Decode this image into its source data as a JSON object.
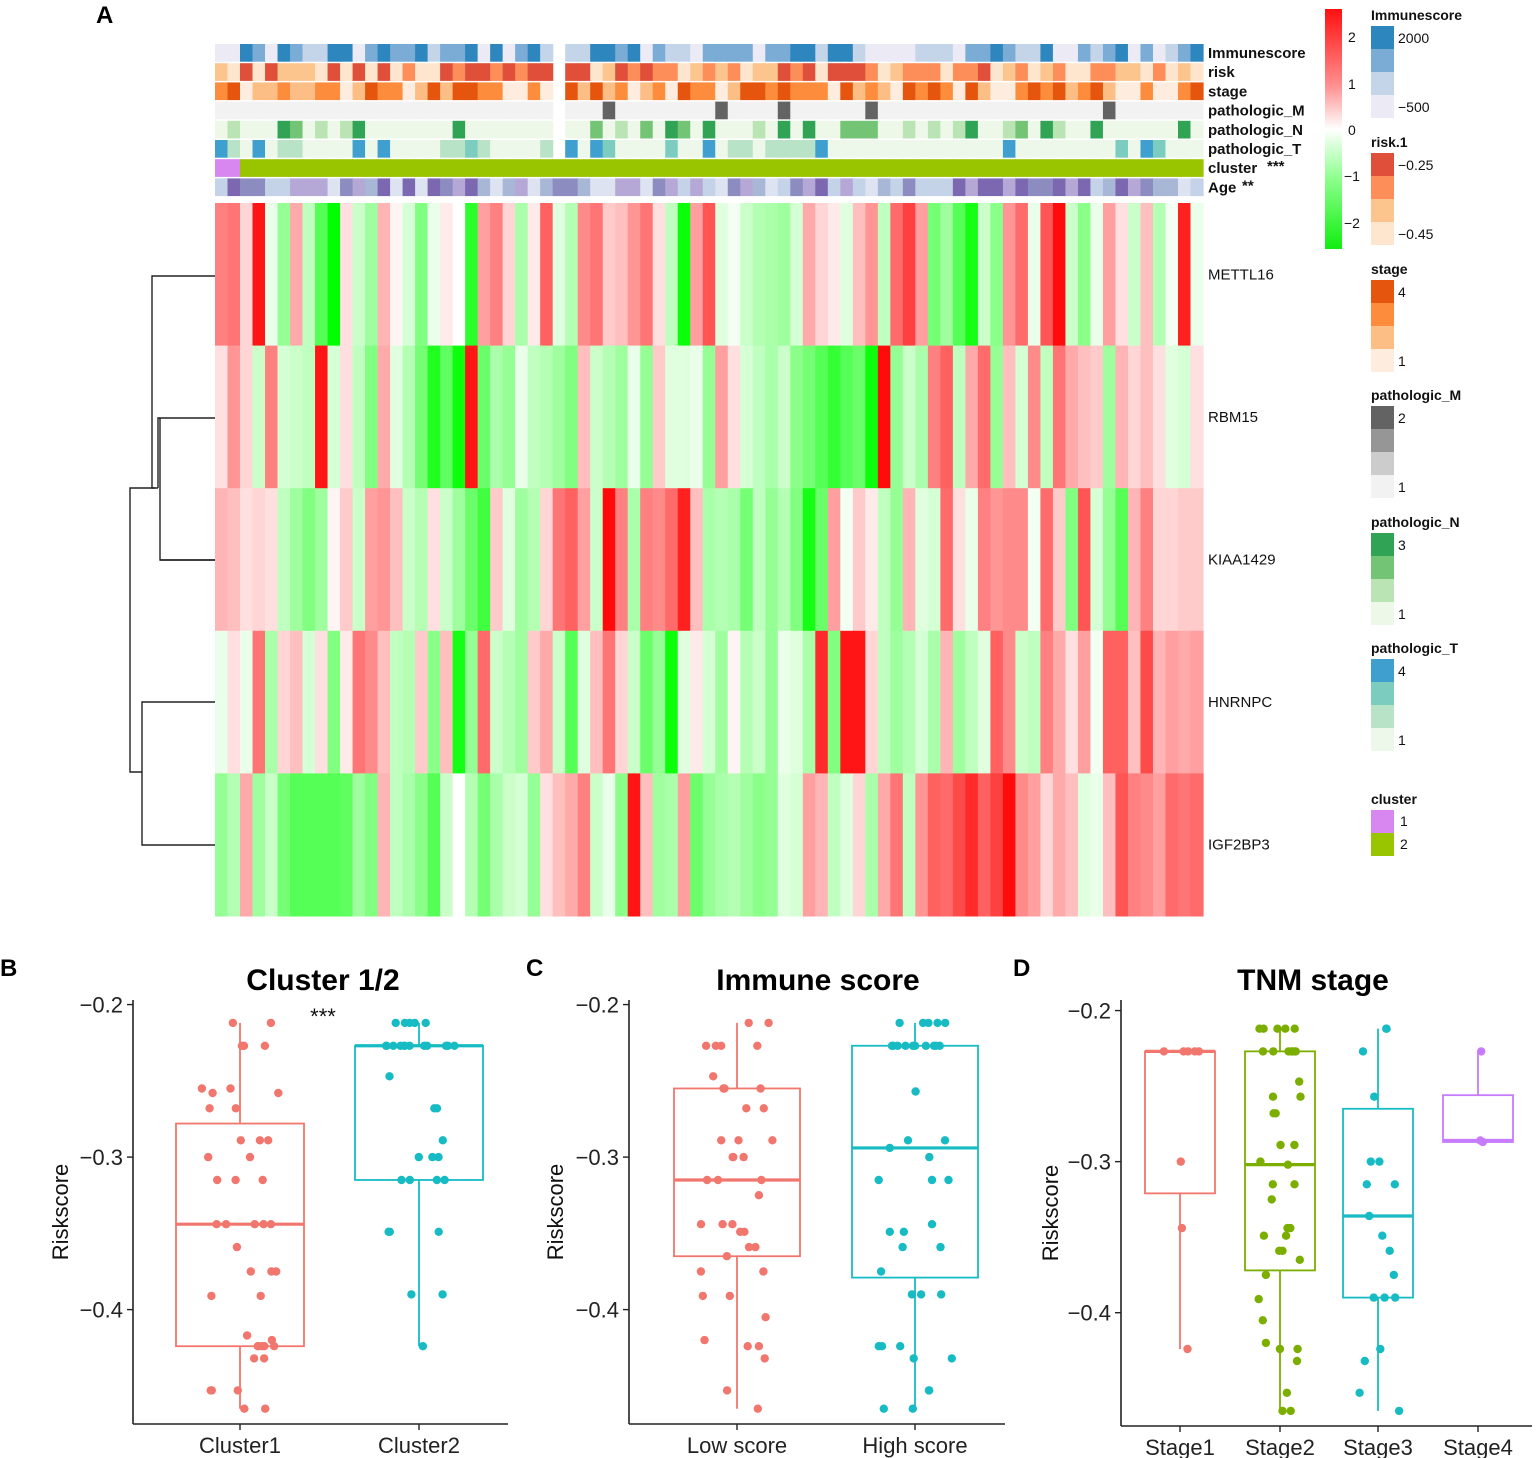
{
  "chart_data": [
    {
      "panel": "A",
      "type": "heatmap",
      "annotation_rows": [
        {
          "name": "Immunescore",
          "sig": ""
        },
        {
          "name": "risk",
          "sig": ""
        },
        {
          "name": "stage",
          "sig": ""
        },
        {
          "name": "pathologic_M",
          "sig": ""
        },
        {
          "name": "pathologic_N",
          "sig": ""
        },
        {
          "name": "pathologic_T",
          "sig": ""
        },
        {
          "name": "cluster",
          "sig": "***"
        },
        {
          "name": "Age",
          "sig": "**"
        }
      ],
      "genes": [
        "METTL16",
        "RBM15",
        "KIAA1429",
        "HNRNPC",
        "IGF2BP3"
      ],
      "n_samples": 79,
      "values": [
        [
          1.2,
          1.3,
          0.4,
          2.2,
          -0.2,
          -1.0,
          0.8,
          -0.6,
          -1.6,
          -2.4,
          0.3,
          -0.5,
          -0.9,
          0.7,
          0.1,
          -0.4,
          -1.2,
          -0.2,
          0.2,
          0.0,
          -2.0,
          0.9,
          1.2,
          0.4,
          -0.8,
          0.2,
          1.5,
          -0.3,
          -0.7,
          1.1,
          1.3,
          0.5,
          0.6,
          1.0,
          1.3,
          0.3,
          -0.6,
          -2.3,
          0.9,
          1.6,
          -0.3,
          -0.1,
          -0.5,
          -0.7,
          -0.8,
          -0.9,
          -0.4,
          0.8,
          0.4,
          0.2,
          -0.3,
          0.6,
          1.0,
          -0.6,
          1.4,
          1.8,
          0.9,
          -1.3,
          -0.9,
          -1.6,
          -2.2,
          -0.5,
          -1.1,
          1.0,
          1.4,
          -0.2,
          1.6,
          2.3,
          -0.5,
          -1.1,
          -0.2,
          0.9,
          0.3,
          -0.5,
          0.6,
          -0.7,
          -0.1,
          2.1,
          -0.2
        ],
        [
          0.3,
          1.0,
          0.4,
          -0.5,
          1.2,
          -0.4,
          -0.5,
          -0.6,
          2.2,
          -0.4,
          0.3,
          -0.6,
          -1.2,
          0.8,
          -0.3,
          -0.7,
          -1.3,
          -2.1,
          -1.5,
          -2.3,
          2.2,
          -1.4,
          -0.8,
          -1.0,
          -0.2,
          -0.6,
          -0.7,
          -0.9,
          -1.2,
          0.6,
          -0.5,
          -0.7,
          -0.9,
          -0.2,
          -1.0,
          0.5,
          -0.3,
          -0.3,
          -0.2,
          -1.0,
          0.9,
          0.3,
          -0.4,
          -0.6,
          -0.8,
          -0.5,
          -1.1,
          -1.3,
          -1.6,
          -1.9,
          -1.6,
          -1.4,
          -2.3,
          2.3,
          -1.0,
          -0.5,
          -0.8,
          1.2,
          1.5,
          -0.6,
          0.8,
          1.4,
          -1.0,
          0.6,
          -0.4,
          1.1,
          -0.6,
          1.3,
          0.8,
          0.6,
          0.5,
          -0.9,
          0.7,
          0.4,
          0.6,
          0.3,
          -0.3,
          -0.4,
          0.3
        ],
        [
          0.7,
          0.6,
          0.3,
          0.4,
          0.3,
          -0.6,
          -0.9,
          -1.2,
          -0.9,
          0.1,
          0.5,
          -0.5,
          0.9,
          1.0,
          0.6,
          -0.5,
          -0.7,
          0.3,
          -0.5,
          -0.9,
          -1.4,
          -1.8,
          0.5,
          -0.3,
          -0.9,
          -0.7,
          0.4,
          1.3,
          1.5,
          0.9,
          -0.5,
          2.3,
          1.2,
          -0.8,
          1.2,
          1.1,
          1.4,
          2.1,
          0.6,
          -0.8,
          -0.7,
          -0.8,
          -1.3,
          -0.6,
          -1.0,
          -0.7,
          -1.2,
          -2.2,
          -1.4,
          0.9,
          -0.1,
          0.5,
          0.2,
          -0.6,
          -1.0,
          0.7,
          -0.3,
          -0.4,
          1.4,
          0.3,
          -0.2,
          1.2,
          1.0,
          1.1,
          1.1,
          -0.1,
          1.4,
          0.5,
          -1.2,
          1.6,
          -0.4,
          -1.0,
          -1.6,
          0.7,
          1.2,
          0.4,
          0.4,
          0.5,
          0.5
        ],
        [
          -0.2,
          0.3,
          -0.2,
          1.3,
          -0.8,
          0.4,
          0.6,
          -0.4,
          0.3,
          -1.2,
          0.2,
          1.3,
          1.1,
          0.6,
          -0.6,
          -0.7,
          0.5,
          -1.1,
          0.6,
          -2.2,
          -1.0,
          1.4,
          -0.5,
          -0.7,
          -0.9,
          0.5,
          0.8,
          -0.5,
          -1.6,
          -0.3,
          0.6,
          1.3,
          0.4,
          -0.5,
          -1.4,
          -1.0,
          -2.3,
          -0.3,
          0.2,
          -0.4,
          -0.9,
          0.1,
          -0.7,
          -0.5,
          -1.0,
          -0.2,
          -0.3,
          -0.8,
          2.0,
          -1.2,
          2.2,
          2.2,
          0.4,
          -0.6,
          -0.9,
          -0.7,
          -0.4,
          -0.8,
          0.7,
          -0.9,
          -0.6,
          -0.3,
          1.5,
          1.1,
          -0.5,
          -0.6,
          1.2,
          0.8,
          0.3,
          0.9,
          -0.1,
          1.5,
          1.5,
          0.6,
          1.7,
          0.7,
          0.9,
          0.8,
          0.9
        ],
        [
          -1.0,
          -0.7,
          0.8,
          -0.9,
          -0.5,
          -1.3,
          -1.6,
          -1.6,
          -1.6,
          -1.6,
          -1.5,
          -0.9,
          -1.2,
          0.7,
          -0.6,
          -0.8,
          -1.1,
          -1.6,
          -0.5,
          0.0,
          -0.7,
          -1.3,
          -0.8,
          -0.5,
          -0.4,
          -1.0,
          0.3,
          0.6,
          0.8,
          1.2,
          -0.5,
          -0.2,
          -1.1,
          2.2,
          0.6,
          -0.9,
          -0.8,
          0.9,
          -1.4,
          -1.0,
          -0.8,
          -0.7,
          -0.9,
          -1.1,
          -1.0,
          -0.3,
          -0.4,
          0.9,
          0.7,
          -0.6,
          -0.3,
          0.4,
          -0.8,
          0.8,
          1.3,
          -0.6,
          1.0,
          1.5,
          1.4,
          1.7,
          2.0,
          1.5,
          1.8,
          2.3,
          1.1,
          0.9,
          0.4,
          0.8,
          0.6,
          -0.3,
          -0.2,
          0.6,
          1.6,
          1.2,
          1.1,
          0.9,
          1.4,
          1.3,
          1.4
        ]
      ],
      "legend": {
        "main_scale": {
          "ticks": [
            "2",
            "1",
            "0",
            "−1",
            "−2"
          ]
        },
        "groups": [
          {
            "title": "Immunescore",
            "ticks": [
              "2000",
              "−500"
            ],
            "colors": [
              "#2e86be",
              "#7aacd6",
              "#c4d5ea",
              "#ecebf5"
            ]
          },
          {
            "title": "risk.1",
            "ticks": [
              "−0.25",
              "−0.45"
            ],
            "colors": [
              "#e04f39",
              "#fd8d59",
              "#fdc58e",
              "#fee6ce"
            ]
          },
          {
            "title": "stage",
            "ticks": [
              "4",
              "1"
            ],
            "colors": [
              "#e6550d",
              "#fd8d3c",
              "#fdbe85",
              "#feedde"
            ]
          },
          {
            "title": "pathologic_M",
            "ticks": [
              "2",
              "1"
            ],
            "colors": [
              "#636363",
              "#969696",
              "#cccccc",
              "#f2f2f2"
            ]
          },
          {
            "title": "pathologic_N",
            "ticks": [
              "3",
              "1"
            ],
            "colors": [
              "#31a354",
              "#74c476",
              "#bae4b3",
              "#edf8e9"
            ]
          },
          {
            "title": "pathologic_T",
            "ticks": [
              "4",
              "1"
            ],
            "colors": [
              "#3fa0d0",
              "#7ccdc0",
              "#b8e3c6",
              "#eef8ea"
            ]
          },
          {
            "title": "cluster",
            "ticks": [
              "1",
              "2"
            ],
            "colors": [
              "#d886f0",
              "#99c400"
            ]
          }
        ]
      }
    },
    {
      "panel": "B",
      "type": "box",
      "title": "Cluster 1/2",
      "xlabel": "",
      "ylabel": "Riskscore",
      "ylim": [
        -0.475,
        -0.197
      ],
      "yticks": [
        "−0.2",
        "−0.3",
        "−0.4"
      ],
      "sig": "***",
      "groups": [
        {
          "name": "Cluster1",
          "color": "#f1766e",
          "q1": -0.424,
          "median": -0.344,
          "q3": -0.278,
          "whisker_low": -0.465,
          "whisker_high": -0.212,
          "points": [
            -0.212,
            -0.212,
            -0.227,
            -0.227,
            -0.227,
            -0.255,
            -0.255,
            -0.258,
            -0.258,
            -0.268,
            -0.268,
            -0.289,
            -0.289,
            -0.289,
            -0.3,
            -0.3,
            -0.315,
            -0.315,
            -0.315,
            -0.344,
            -0.344,
            -0.344,
            -0.344,
            -0.344,
            -0.359,
            -0.375,
            -0.375,
            -0.375,
            -0.391,
            -0.391,
            -0.417,
            -0.42,
            -0.424,
            -0.424,
            -0.424,
            -0.424,
            -0.424,
            -0.432,
            -0.432,
            -0.453,
            -0.453,
            -0.453,
            -0.465,
            -0.465
          ]
        },
        {
          "name": "Cluster2",
          "color": "#17bbc4",
          "q1": -0.315,
          "median": -0.227,
          "q3": -0.227,
          "whisker_low": -0.424,
          "whisker_high": -0.212,
          "points": [
            -0.212,
            -0.212,
            -0.212,
            -0.212,
            -0.212,
            -0.227,
            -0.227,
            -0.227,
            -0.227,
            -0.227,
            -0.227,
            -0.227,
            -0.227,
            -0.227,
            -0.227,
            -0.227,
            -0.227,
            -0.247,
            -0.268,
            -0.268,
            -0.289,
            -0.3,
            -0.3,
            -0.3,
            -0.315,
            -0.315,
            -0.315,
            -0.315,
            -0.349,
            -0.349,
            -0.349,
            -0.39,
            -0.39,
            -0.424
          ]
        }
      ]
    },
    {
      "panel": "C",
      "type": "box",
      "title": "Immune score",
      "xlabel": "",
      "ylabel": "Riskscore",
      "ylim": [
        -0.475,
        -0.197
      ],
      "yticks": [
        "−0.2",
        "−0.3",
        "−0.4"
      ],
      "groups": [
        {
          "name": "Low score",
          "color": "#f1766e",
          "q1": -0.365,
          "median": -0.315,
          "q3": -0.255,
          "whisker_low": -0.465,
          "whisker_high": -0.212,
          "points": [
            -0.212,
            -0.212,
            -0.227,
            -0.227,
            -0.227,
            -0.227,
            -0.247,
            -0.255,
            -0.255,
            -0.255,
            -0.268,
            -0.268,
            -0.289,
            -0.289,
            -0.289,
            -0.3,
            -0.3,
            -0.3,
            -0.315,
            -0.315,
            -0.315,
            -0.325,
            -0.344,
            -0.344,
            -0.344,
            -0.349,
            -0.349,
            -0.359,
            -0.359,
            -0.365,
            -0.375,
            -0.375,
            -0.391,
            -0.391,
            -0.405,
            -0.42,
            -0.424,
            -0.424,
            -0.432,
            -0.453,
            -0.465
          ]
        },
        {
          "name": "High score",
          "color": "#17bbc4",
          "q1": -0.379,
          "median": -0.294,
          "q3": -0.227,
          "whisker_low": -0.465,
          "whisker_high": -0.212,
          "points": [
            -0.212,
            -0.212,
            -0.212,
            -0.212,
            -0.212,
            -0.227,
            -0.227,
            -0.227,
            -0.227,
            -0.227,
            -0.227,
            -0.227,
            -0.227,
            -0.227,
            -0.227,
            -0.257,
            -0.289,
            -0.289,
            -0.294,
            -0.3,
            -0.315,
            -0.315,
            -0.315,
            -0.344,
            -0.349,
            -0.349,
            -0.359,
            -0.359,
            -0.375,
            -0.39,
            -0.39,
            -0.39,
            -0.424,
            -0.424,
            -0.424,
            -0.432,
            -0.432,
            -0.453,
            -0.453,
            -0.465,
            -0.465
          ]
        }
      ]
    },
    {
      "panel": "D",
      "type": "box",
      "title": "TNM stage",
      "xlabel": "",
      "ylabel": "Riskscore",
      "ylim": [
        -0.475,
        -0.193
      ],
      "yticks": [
        "−0.2",
        "−0.3",
        "−0.4"
      ],
      "groups": [
        {
          "name": "Stage1",
          "color": "#f1766e",
          "q1": -0.321,
          "median": -0.227,
          "q3": -0.227,
          "whisker_low": -0.424,
          "whisker_high": -0.227,
          "points": [
            -0.227,
            -0.227,
            -0.227,
            -0.227,
            -0.227,
            -0.3,
            -0.344,
            -0.424
          ]
        },
        {
          "name": "Stage2",
          "color": "#7cae00",
          "q1": -0.372,
          "median": -0.302,
          "q3": -0.227,
          "whisker_low": -0.465,
          "whisker_high": -0.212,
          "points": [
            -0.212,
            -0.212,
            -0.212,
            -0.212,
            -0.212,
            -0.227,
            -0.227,
            -0.227,
            -0.227,
            -0.227,
            -0.227,
            -0.227,
            -0.247,
            -0.257,
            -0.257,
            -0.268,
            -0.268,
            -0.289,
            -0.289,
            -0.3,
            -0.302,
            -0.315,
            -0.315,
            -0.325,
            -0.344,
            -0.344,
            -0.349,
            -0.349,
            -0.359,
            -0.359,
            -0.365,
            -0.375,
            -0.391,
            -0.405,
            -0.42,
            -0.424,
            -0.424,
            -0.432,
            -0.453,
            -0.465,
            -0.465
          ]
        },
        {
          "name": "Stage3",
          "color": "#17bbc4",
          "q1": -0.39,
          "median": -0.336,
          "q3": -0.265,
          "whisker_low": -0.465,
          "whisker_high": -0.212,
          "points": [
            -0.212,
            -0.212,
            -0.227,
            -0.257,
            -0.3,
            -0.3,
            -0.315,
            -0.315,
            -0.336,
            -0.349,
            -0.359,
            -0.375,
            -0.39,
            -0.39,
            -0.39,
            -0.424,
            -0.432,
            -0.453,
            -0.465
          ]
        },
        {
          "name": "Stage4",
          "color": "#c77cff",
          "q1": -0.287,
          "median": -0.286,
          "q3": -0.256,
          "whisker_low": -0.287,
          "whisker_high": -0.227,
          "points": [
            -0.227,
            -0.286,
            -0.287
          ]
        }
      ]
    }
  ]
}
